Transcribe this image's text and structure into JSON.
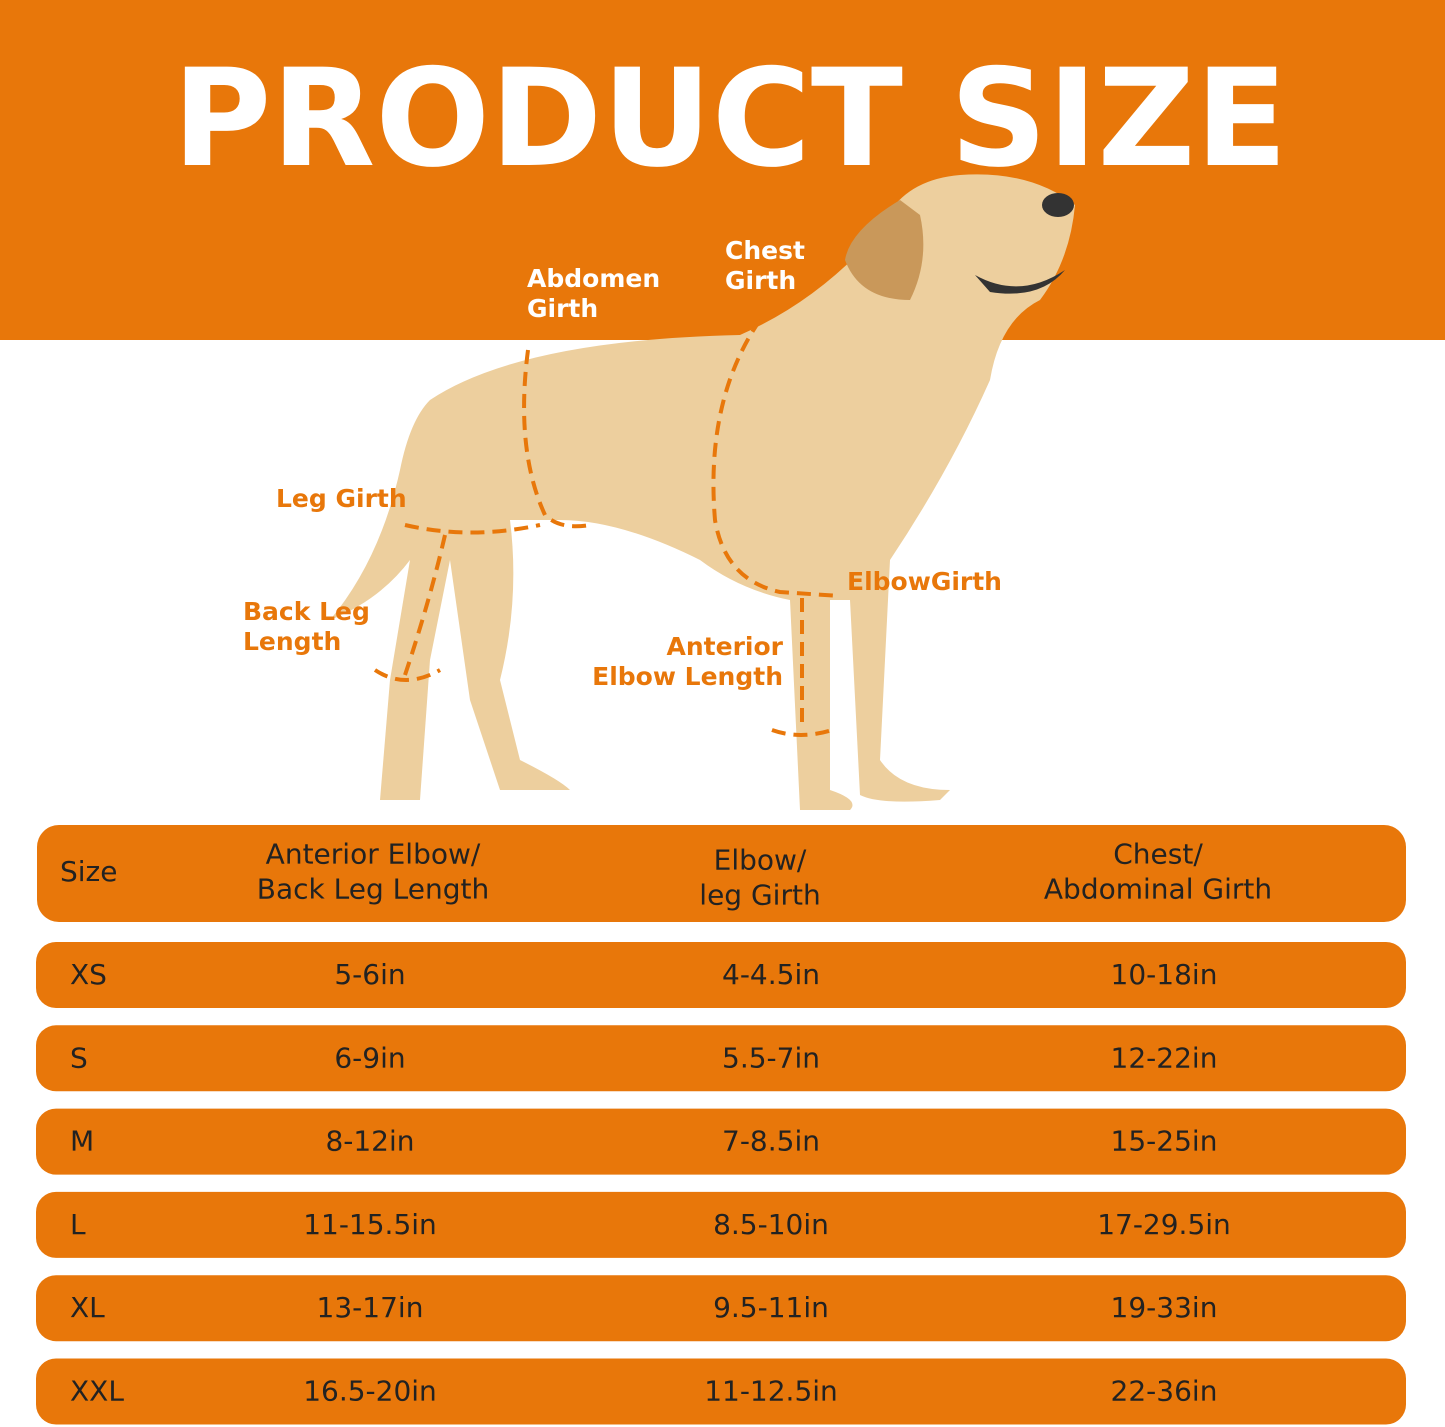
{
  "header": {
    "title": "PRODUCT SIZE"
  },
  "labels": [
    {
      "lines": [
        "Abdomen",
        "Girth"
      ]
    },
    {
      "lines": [
        "Chest",
        "Girth"
      ]
    },
    {
      "lines": [
        "Leg Girth"
      ]
    },
    {
      "lines": [
        "Back Leg",
        "Length"
      ]
    },
    {
      "lines": [
        "ElbowGirth"
      ]
    },
    {
      "lines": [
        "Anterior",
        "Elbow Length"
      ]
    }
  ],
  "table": {
    "header": [
      [
        "Size"
      ],
      [
        "Anterior Elbow/",
        "Back Leg Length"
      ],
      [
        "Elbow/",
        "leg Girth"
      ],
      [
        "Chest/",
        "Abdominal Girth"
      ]
    ],
    "rows": [
      [
        "XS",
        "5-6in",
        "4-4.5in",
        "10-18in"
      ],
      [
        "S",
        "6-9in",
        "5.5-7in",
        "12-22in"
      ],
      [
        "M",
        "8-12in",
        "7-8.5in",
        "15-25in"
      ],
      [
        "L",
        "11-15.5in",
        "8.5-10in",
        "17-29.5in"
      ],
      [
        "XL",
        "13-17in",
        "9.5-11in",
        "19-33in"
      ],
      [
        "XXL",
        "16.5-20in",
        "11-12.5in",
        "22-36in"
      ]
    ]
  }
}
